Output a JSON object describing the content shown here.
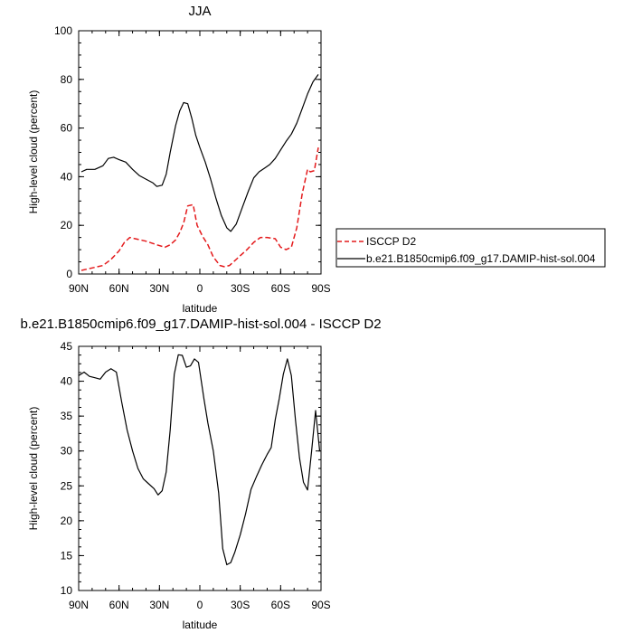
{
  "chart_data": [
    {
      "type": "line",
      "title": "JJA",
      "xlabel": "latitude",
      "ylabel": "High-level cloud (percent)",
      "xlim": [
        90,
        -90
      ],
      "ylim": [
        0,
        100
      ],
      "x_ticks": [
        90,
        60,
        30,
        0,
        -30,
        -60,
        -90
      ],
      "x_tick_labels": [
        "90N",
        "60N",
        "30N",
        "0",
        "30S",
        "60S",
        "90S"
      ],
      "y_ticks": [
        0,
        20,
        40,
        60,
        80,
        100
      ],
      "y_tick_labels": [
        "0",
        "20",
        "40",
        "60",
        "80",
        "100"
      ],
      "legend_placement": "right",
      "series": [
        {
          "name": "ISCCP D2",
          "color": "#e41a1c",
          "style": "dashed",
          "x": [
            88,
            80,
            72,
            66,
            60,
            56,
            52,
            48,
            40,
            32,
            26,
            22,
            18,
            15,
            12,
            9,
            5,
            2,
            -2,
            -6,
            -10,
            -15,
            -18,
            -22,
            -28,
            -35,
            -40,
            -45,
            -50,
            -56,
            -60,
            -64,
            -68,
            -72,
            -76,
            -80,
            -82,
            -85,
            -88
          ],
          "y": [
            1.5,
            2.5,
            3.5,
            6,
            9.5,
            13,
            15,
            14.5,
            13.5,
            12,
            11,
            12,
            14,
            17,
            21,
            28,
            28.5,
            20,
            15.5,
            12,
            7,
            3.5,
            3,
            3.5,
            6.5,
            10,
            13,
            15,
            15,
            14.5,
            11,
            10,
            11,
            19,
            33,
            43,
            42,
            42.5,
            52
          ]
        },
        {
          "name": "b.e21.B1850cmip6.f09_g17.DAMIP-hist-sol.004",
          "color": "#000000",
          "style": "solid",
          "x": [
            88,
            84,
            78,
            72,
            68,
            64,
            60,
            55,
            50,
            45,
            40,
            35,
            32,
            28,
            25,
            22,
            18,
            15,
            12,
            9,
            6,
            3,
            0,
            -4,
            -8,
            -12,
            -16,
            -20,
            -23,
            -27,
            -32,
            -36,
            -40,
            -44,
            -48,
            -52,
            -56,
            -60,
            -64,
            -68,
            -72,
            -76,
            -80,
            -84,
            -88
          ],
          "y": [
            42,
            43,
            43,
            44.5,
            47.5,
            48,
            47,
            46,
            43,
            40.5,
            39,
            37.5,
            36,
            36.5,
            41,
            50,
            61,
            67,
            70.5,
            70,
            64,
            57,
            52,
            46,
            39,
            31,
            24,
            19,
            17.5,
            20.5,
            28,
            34,
            39.5,
            42,
            43.5,
            45,
            47.5,
            51,
            54.5,
            57.5,
            62,
            68,
            74,
            79,
            82
          ]
        }
      ]
    },
    {
      "type": "line",
      "title": "b.e21.B1850cmip6.f09_g17.DAMIP-hist-sol.004 - ISCCP D2",
      "xlabel": "latitude",
      "ylabel": "High-level cloud (percent)",
      "xlim": [
        90,
        -90
      ],
      "ylim": [
        10,
        45
      ],
      "x_ticks": [
        90,
        60,
        30,
        0,
        -30,
        -60,
        -90
      ],
      "x_tick_labels": [
        "90N",
        "60N",
        "30N",
        "0",
        "30S",
        "60S",
        "90S"
      ],
      "y_ticks": [
        10,
        15,
        20,
        25,
        30,
        35,
        40,
        45
      ],
      "y_tick_labels": [
        "10",
        "15",
        "20",
        "25",
        "30",
        "35",
        "40",
        "45"
      ],
      "series": [
        {
          "color": "#000000",
          "style": "solid",
          "x": [
            90,
            86,
            82,
            78,
            74,
            70,
            66,
            62,
            58,
            54,
            50,
            46,
            42,
            38,
            34,
            31,
            28,
            25,
            22,
            19,
            16,
            13,
            10,
            7,
            4,
            1,
            -3,
            -6,
            -10,
            -14,
            -17,
            -20,
            -23,
            -26,
            -30,
            -34,
            -38,
            -42,
            -46,
            -50,
            -53,
            -56,
            -59,
            -62,
            -65,
            -68,
            -71,
            -74,
            -77,
            -80,
            -83,
            -86,
            -89
          ],
          "y": [
            40.8,
            41.3,
            40.7,
            40.5,
            40.3,
            41.3,
            41.8,
            41.3,
            37,
            33,
            30,
            27.5,
            26,
            25.3,
            24.6,
            23.7,
            24.3,
            27,
            33,
            41,
            43.8,
            43.7,
            42,
            42.2,
            43.2,
            42.7,
            37.5,
            34,
            30,
            24,
            16,
            13.7,
            14,
            15.5,
            18,
            21,
            24.5,
            26.3,
            28,
            29.5,
            30.5,
            34.5,
            37.5,
            41,
            43.2,
            40.8,
            34.5,
            29,
            25.5,
            24.4,
            30,
            35.8,
            30
          ]
        }
      ]
    }
  ]
}
